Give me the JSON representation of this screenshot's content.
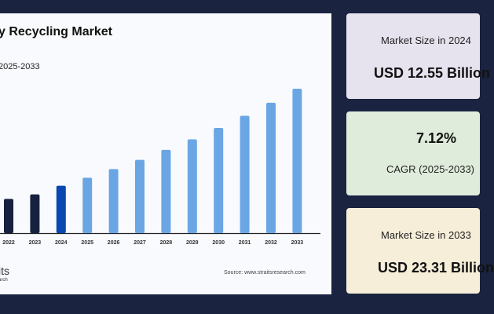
{
  "chart_data": {
    "type": "bar",
    "title": "y Recycling Market",
    "subtitle": "2025-2033",
    "categories": [
      "2022",
      "2023",
      "2024",
      "2025",
      "2026",
      "2027",
      "2028",
      "2029",
      "2030",
      "2031",
      "2032",
      "2033"
    ],
    "values": [
      11.1,
      11.6,
      12.55,
      13.44,
      14.4,
      15.43,
      16.53,
      17.7,
      18.96,
      20.31,
      21.76,
      23.31
    ],
    "ylim": [
      7.3,
      23.31
    ],
    "grid": false,
    "colors": {
      "historic": "#16213f",
      "base_year": "#0a47b0",
      "forecast": "#6ba6e4"
    },
    "source": "Source: www.straitsresearch.com"
  },
  "logo": {
    "line1": "its",
    "line2": "arch"
  },
  "cards": [
    {
      "label": "Market Size in 2024",
      "value": "USD 12.55 Billion",
      "bg": "#e6e2ee"
    },
    {
      "value": "7.12%",
      "label": "CAGR (2025-2033)",
      "bg": "#e0ecdb"
    },
    {
      "label": "Market Size in 2033",
      "value": "USD 23.31 Billion",
      "bg": "#f6eed8"
    }
  ]
}
